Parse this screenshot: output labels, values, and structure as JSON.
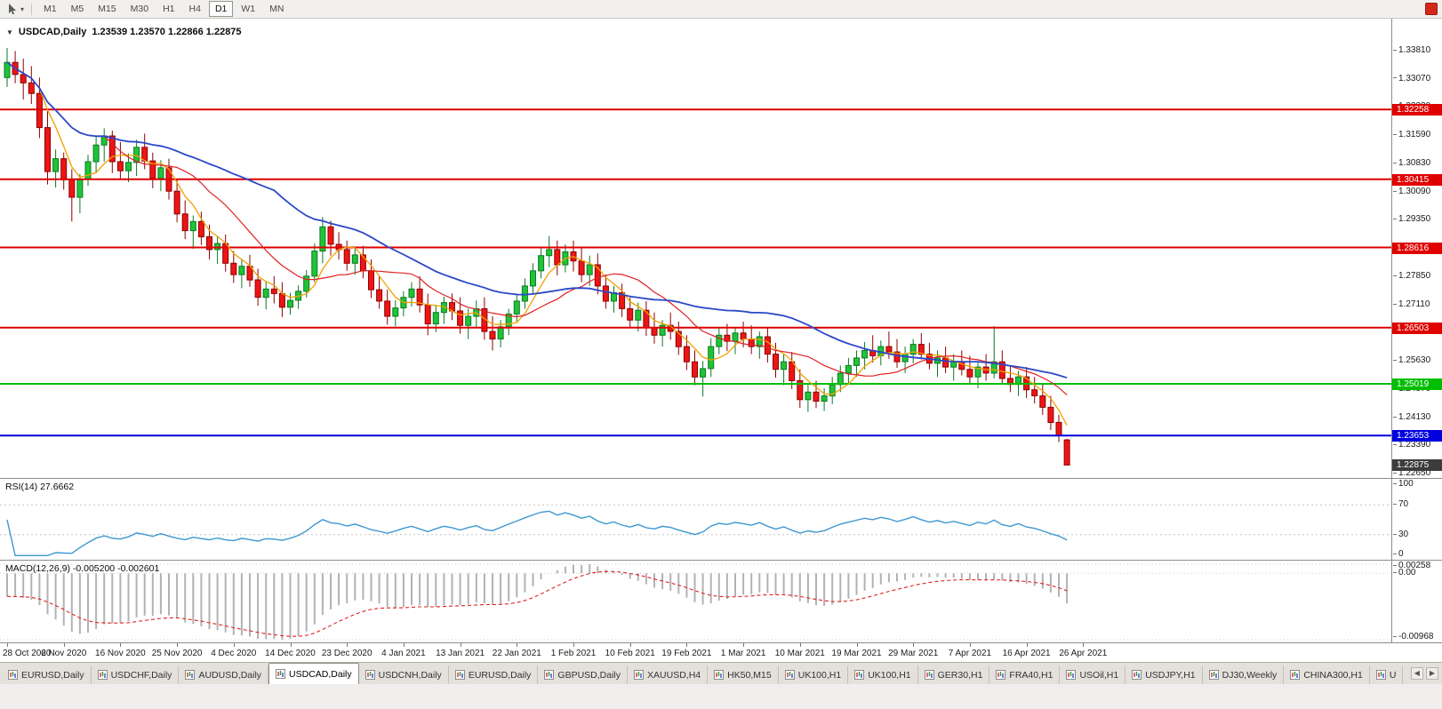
{
  "toolbar": {
    "timeframes": [
      "M1",
      "M5",
      "M15",
      "M30",
      "H1",
      "H4",
      "D1",
      "W1",
      "MN"
    ],
    "active_timeframe": "D1",
    "status_icon_color": "#d4281c"
  },
  "chart": {
    "symbol": "USDCAD,Daily",
    "ohlc_text": "1.23539 1.23570 1.22866 1.22875",
    "price_axis": [
      "1.33810",
      "1.33070",
      "1.32330",
      "1.31590",
      "1.30830",
      "1.30090",
      "1.29350",
      "1.28610",
      "1.27850",
      "1.27110",
      "1.26370",
      "1.25630",
      "1.24870",
      "1.24130",
      "1.23390",
      "1.22650"
    ],
    "current_price": {
      "value": 1.22875,
      "label": "1.22875",
      "color": "#3c3c3c"
    }
  },
  "rsi": {
    "label": "RSI(14) 27.6662",
    "period": 14,
    "value": "27.6662",
    "axis": [
      "100",
      "70",
      "30",
      "0"
    ],
    "levels": [
      70,
      30
    ],
    "line_color": "#3e97d1"
  },
  "macd": {
    "label": "MACD(12,26,9) -0.005200 -0.002601",
    "macd_value": "-0.005200",
    "signal_value": "-0.002601",
    "axis": {
      "max": "0.00258",
      "zero": "0.00",
      "min": "-0.00968"
    },
    "histogram_color": "#b2b2b2",
    "signal_color": "#e02020"
  },
  "dates": [
    "28 Oct 2020",
    "6 Nov 2020",
    "16 Nov 2020",
    "25 Nov 2020",
    "4 Dec 2020",
    "14 Dec 2020",
    "23 Dec 2020",
    "4 Jan 2021",
    "13 Jan 2021",
    "22 Jan 2021",
    "1 Feb 2021",
    "10 Feb 2021",
    "19 Feb 2021",
    "1 Mar 2021",
    "10 Mar 2021",
    "19 Mar 2021",
    "29 Mar 2021",
    "7 Apr 2021",
    "16 Apr 2021",
    "26 Apr 2021"
  ],
  "tabs": {
    "items": [
      "EURUSD,Daily",
      "USDCHF,Daily",
      "AUDUSD,Daily",
      "USDCAD,Daily",
      "USDCNH,Daily",
      "EURUSD,Daily",
      "GBPUSD,Daily",
      "XAUUSD,H4",
      "HK50,M15",
      "UK100,H1",
      "UK100,H1",
      "GER30,H1",
      "FRA40,H1",
      "USOil,H1",
      "USDJPY,H1",
      "DJ30,Weekly",
      "CHINA300,H1",
      "U"
    ],
    "active_index": 3,
    "scroll_left": "◀",
    "scroll_right": "▶"
  },
  "chart_data": {
    "type": "candlestick",
    "symbol": "USDCAD",
    "timeframe": "Daily",
    "visible_price_range": [
      1.2265,
      1.3381
    ],
    "colors": {
      "up": "#1fc437",
      "up_stroke": "#0b7a22",
      "down": "#ed1515",
      "down_stroke": "#8e0000"
    },
    "moving_averages": [
      {
        "name": "ma-fast",
        "period": 5,
        "color": "#f0a000"
      },
      {
        "name": "ma-medium",
        "period": 13,
        "color": "#e02020"
      },
      {
        "name": "ma-slow",
        "period": 34,
        "color": "#2b48c8"
      }
    ],
    "levels": [
      {
        "value": 1.32258,
        "label": "1.32258",
        "color": "#df0000"
      },
      {
        "value": 1.30415,
        "label": "1.30415",
        "color": "#df0000"
      },
      {
        "value": 1.28616,
        "label": "1.28616",
        "color": "#df0000"
      },
      {
        "value": 1.26503,
        "label": "1.26503",
        "color": "#df0000"
      },
      {
        "value": 1.25019,
        "label": "1.25019",
        "color": "#00be00"
      },
      {
        "value": 1.23653,
        "label": "1.23653",
        "color": "#0000de"
      }
    ],
    "indicators": {
      "rsi": {
        "period": 14,
        "last_value": 27.6662
      },
      "macd": {
        "fast": 12,
        "slow": 26,
        "signal": 9,
        "last_macd": -0.0052,
        "last_signal": -0.002601
      }
    },
    "ohlc": [
      [
        1.331,
        1.3388,
        1.3285,
        1.335
      ],
      [
        1.335,
        1.338,
        1.3295,
        1.3318
      ],
      [
        1.3318,
        1.336,
        1.3252,
        1.3296
      ],
      [
        1.3296,
        1.334,
        1.324,
        1.3268
      ],
      [
        1.3268,
        1.331,
        1.315,
        1.3178
      ],
      [
        1.3178,
        1.3222,
        1.3028,
        1.3062
      ],
      [
        1.3062,
        1.312,
        1.302,
        1.3096
      ],
      [
        1.3096,
        1.3112,
        1.3014,
        1.304
      ],
      [
        1.304,
        1.3068,
        1.293,
        1.2994
      ],
      [
        1.2994,
        1.3056,
        1.2952,
        1.3042
      ],
      [
        1.3042,
        1.3106,
        1.3024,
        1.3088
      ],
      [
        1.3088,
        1.3155,
        1.3058,
        1.3132
      ],
      [
        1.3132,
        1.3176,
        1.3088,
        1.3156
      ],
      [
        1.3156,
        1.317,
        1.3058,
        1.3088
      ],
      [
        1.3088,
        1.314,
        1.304,
        1.3064
      ],
      [
        1.3064,
        1.311,
        1.3034,
        1.3086
      ],
      [
        1.3086,
        1.3146,
        1.305,
        1.3126
      ],
      [
        1.3126,
        1.3162,
        1.3068,
        1.309
      ],
      [
        1.309,
        1.3112,
        1.3018,
        1.3044
      ],
      [
        1.3044,
        1.3092,
        1.301,
        1.3072
      ],
      [
        1.3072,
        1.3096,
        1.2988,
        1.301
      ],
      [
        1.301,
        1.304,
        1.2928,
        1.295
      ],
      [
        1.295,
        1.2986,
        1.2884,
        1.2906
      ],
      [
        1.2906,
        1.2946,
        1.2858,
        1.293
      ],
      [
        1.293,
        1.2956,
        1.2868,
        1.289
      ],
      [
        1.289,
        1.2922,
        1.283,
        1.2856
      ],
      [
        1.2856,
        1.2892,
        1.2818,
        1.2872
      ],
      [
        1.2872,
        1.2896,
        1.2798,
        1.282
      ],
      [
        1.282,
        1.2852,
        1.2768,
        1.279
      ],
      [
        1.279,
        1.2832,
        1.2754,
        1.2812
      ],
      [
        1.2812,
        1.2842,
        1.2758,
        1.2776
      ],
      [
        1.2776,
        1.2806,
        1.2708,
        1.273
      ],
      [
        1.273,
        1.2772,
        1.2698,
        1.2752
      ],
      [
        1.2752,
        1.2786,
        1.2714,
        1.274
      ],
      [
        1.274,
        1.277,
        1.2678,
        1.2704
      ],
      [
        1.2704,
        1.2742,
        1.2684,
        1.2722
      ],
      [
        1.2722,
        1.2762,
        1.27,
        1.2746
      ],
      [
        1.2746,
        1.2802,
        1.273,
        1.2786
      ],
      [
        1.2786,
        1.2872,
        1.277,
        1.2852
      ],
      [
        1.2852,
        1.2942,
        1.282,
        1.2916
      ],
      [
        1.2916,
        1.2932,
        1.284,
        1.287
      ],
      [
        1.287,
        1.2902,
        1.283,
        1.2856
      ],
      [
        1.2856,
        1.288,
        1.28,
        1.282
      ],
      [
        1.282,
        1.2862,
        1.279,
        1.2842
      ],
      [
        1.2842,
        1.2866,
        1.278,
        1.28
      ],
      [
        1.28,
        1.283,
        1.2728,
        1.275
      ],
      [
        1.275,
        1.2786,
        1.27,
        1.272
      ],
      [
        1.272,
        1.275,
        1.2658,
        1.268
      ],
      [
        1.268,
        1.2722,
        1.2654,
        1.2702
      ],
      [
        1.2702,
        1.2746,
        1.268,
        1.273
      ],
      [
        1.273,
        1.277,
        1.2706,
        1.2752
      ],
      [
        1.2752,
        1.2786,
        1.269,
        1.271
      ],
      [
        1.271,
        1.274,
        1.263,
        1.266
      ],
      [
        1.266,
        1.271,
        1.2638,
        1.269
      ],
      [
        1.269,
        1.2732,
        1.266,
        1.2716
      ],
      [
        1.2716,
        1.274,
        1.267,
        1.2694
      ],
      [
        1.2694,
        1.273,
        1.2634,
        1.2656
      ],
      [
        1.2656,
        1.27,
        1.262,
        1.268
      ],
      [
        1.268,
        1.2722,
        1.265,
        1.27
      ],
      [
        1.27,
        1.273,
        1.2618,
        1.264
      ],
      [
        1.264,
        1.268,
        1.259,
        1.262
      ],
      [
        1.262,
        1.267,
        1.2598,
        1.2652
      ],
      [
        1.2652,
        1.27,
        1.263,
        1.2686
      ],
      [
        1.2686,
        1.274,
        1.2666,
        1.272
      ],
      [
        1.272,
        1.278,
        1.27,
        1.276
      ],
      [
        1.276,
        1.282,
        1.274,
        1.28
      ],
      [
        1.28,
        1.286,
        1.278,
        1.284
      ],
      [
        1.284,
        1.2892,
        1.281,
        1.2856
      ],
      [
        1.2856,
        1.288,
        1.2788,
        1.2816
      ],
      [
        1.2816,
        1.287,
        1.2796,
        1.285
      ],
      [
        1.285,
        1.288,
        1.2798,
        1.2826
      ],
      [
        1.2826,
        1.2864,
        1.277,
        1.279
      ],
      [
        1.279,
        1.284,
        1.276,
        1.2816
      ],
      [
        1.2816,
        1.2846,
        1.2738,
        1.276
      ],
      [
        1.276,
        1.279,
        1.27,
        1.272
      ],
      [
        1.272,
        1.276,
        1.269,
        1.2742
      ],
      [
        1.2742,
        1.2766,
        1.2678,
        1.27
      ],
      [
        1.27,
        1.273,
        1.2648,
        1.267
      ],
      [
        1.267,
        1.2716,
        1.264,
        1.2696
      ],
      [
        1.2696,
        1.272,
        1.2628,
        1.265
      ],
      [
        1.265,
        1.269,
        1.2608,
        1.263
      ],
      [
        1.263,
        1.267,
        1.26,
        1.2656
      ],
      [
        1.2656,
        1.269,
        1.2618,
        1.264
      ],
      [
        1.264,
        1.2666,
        1.2578,
        1.26
      ],
      [
        1.26,
        1.263,
        1.2538,
        1.256
      ],
      [
        1.256,
        1.259,
        1.2498,
        1.252
      ],
      [
        1.252,
        1.2562,
        1.2468,
        1.2542
      ],
      [
        1.2542,
        1.2622,
        1.252,
        1.26
      ],
      [
        1.26,
        1.2652,
        1.258,
        1.263
      ],
      [
        1.263,
        1.266,
        1.2588,
        1.2614
      ],
      [
        1.2614,
        1.265,
        1.258,
        1.2636
      ],
      [
        1.2636,
        1.2666,
        1.2598,
        1.262
      ],
      [
        1.262,
        1.2656,
        1.258,
        1.26
      ],
      [
        1.26,
        1.264,
        1.2568,
        1.2626
      ],
      [
        1.2626,
        1.265,
        1.2558,
        1.258
      ],
      [
        1.258,
        1.261,
        1.2518,
        1.254
      ],
      [
        1.254,
        1.258,
        1.2498,
        1.256
      ],
      [
        1.256,
        1.2586,
        1.2488,
        1.251
      ],
      [
        1.251,
        1.254,
        1.2438,
        1.246
      ],
      [
        1.246,
        1.25,
        1.2428,
        1.248
      ],
      [
        1.248,
        1.251,
        1.2438,
        1.2456
      ],
      [
        1.2456,
        1.249,
        1.243,
        1.247
      ],
      [
        1.247,
        1.252,
        1.2448,
        1.25
      ],
      [
        1.25,
        1.255,
        1.248,
        1.253
      ],
      [
        1.253,
        1.257,
        1.25,
        1.255
      ],
      [
        1.255,
        1.259,
        1.252,
        1.257
      ],
      [
        1.257,
        1.2612,
        1.254,
        1.259
      ],
      [
        1.259,
        1.263,
        1.2558,
        1.2576
      ],
      [
        1.2576,
        1.2616,
        1.255,
        1.26
      ],
      [
        1.26,
        1.264,
        1.2568,
        1.2586
      ],
      [
        1.2586,
        1.262,
        1.2544,
        1.256
      ],
      [
        1.256,
        1.26,
        1.253,
        1.258
      ],
      [
        1.258,
        1.262,
        1.2556,
        1.2606
      ],
      [
        1.2606,
        1.2636,
        1.2566,
        1.258
      ],
      [
        1.258,
        1.261,
        1.254,
        1.2556
      ],
      [
        1.2556,
        1.259,
        1.252,
        1.257
      ],
      [
        1.257,
        1.26,
        1.253,
        1.2546
      ],
      [
        1.2546,
        1.258,
        1.251,
        1.256
      ],
      [
        1.256,
        1.259,
        1.2524,
        1.254
      ],
      [
        1.254,
        1.2576,
        1.2504,
        1.252
      ],
      [
        1.252,
        1.256,
        1.249,
        1.2546
      ],
      [
        1.2546,
        1.258,
        1.251,
        1.253
      ],
      [
        1.253,
        1.2654,
        1.2516,
        1.256
      ],
      [
        1.256,
        1.259,
        1.25,
        1.2516
      ],
      [
        1.2516,
        1.255,
        1.248,
        1.25
      ],
      [
        1.25,
        1.2536,
        1.247,
        1.252
      ],
      [
        1.252,
        1.2546,
        1.2464,
        1.2486
      ],
      [
        1.2486,
        1.252,
        1.245,
        1.247
      ],
      [
        1.247,
        1.25,
        1.242,
        1.244
      ],
      [
        1.244,
        1.247,
        1.238,
        1.24
      ],
      [
        1.24,
        1.242,
        1.2348,
        1.2365
      ],
      [
        1.23539,
        1.2357,
        1.22866,
        1.22875
      ]
    ]
  }
}
